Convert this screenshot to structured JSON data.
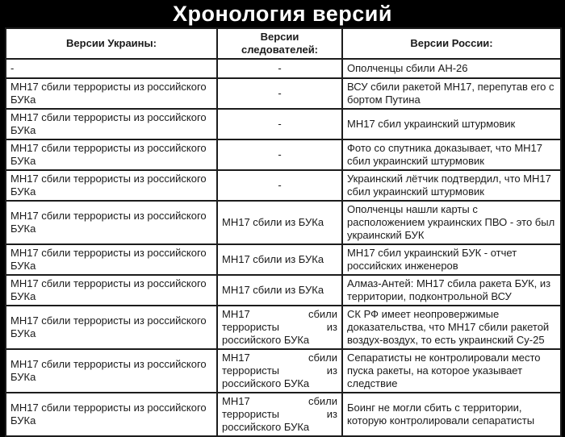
{
  "title": "Хронология версий",
  "colors": {
    "background": "#000000",
    "cell_background": "#ffffff",
    "border": "#1c1c1c",
    "text": "#1a1a1a",
    "title_text": "#ffffff"
  },
  "table": {
    "headers": [
      {
        "label": "Версии Украины:"
      },
      {
        "label": "Версии следователей:"
      },
      {
        "label": "Версии России:"
      }
    ],
    "rows": [
      {
        "ukraine": "-",
        "investigators": "-",
        "russia": "Ополченцы сбили АН-26"
      },
      {
        "ukraine": "МН17 сбили террористы из российского БУКа",
        "investigators": "-",
        "russia": "ВСУ сбили ракетой МН17, перепутав его с бортом Путина"
      },
      {
        "ukraine": "МН17 сбили террористы из российского БУКа",
        "investigators": "-",
        "russia": "МН17 сбил украинский штурмовик"
      },
      {
        "ukraine": "МН17 сбили террористы из российского БУКа",
        "investigators": "-",
        "russia": "Фото со спутника доказывает, что МН17 сбил украинский штурмовик"
      },
      {
        "ukraine": "МН17 сбили террористы из российского БУКа",
        "investigators": "-",
        "russia": "Украинский лётчик подтвердил, что МН17 сбил украинский штурмовик"
      },
      {
        "ukraine": "МН17 сбили террористы из российского БУКа",
        "investigators": "МН17 сбили из БУКа",
        "russia": "Ополченцы нашли карты с расположением украинских ПВО - это был украинский БУК"
      },
      {
        "ukraine": "МН17 сбили террористы из российского БУКа",
        "investigators": "МН17 сбили из БУКа",
        "russia": "МН17 сбил украинский БУК - отчет российских инженеров"
      },
      {
        "ukraine": "МН17 сбили террористы из российского БУКа",
        "investigators": "МН17 сбили из БУКа",
        "russia": "Алмаз-Антей: МН17 сбила ракета БУК, из территории, подконтрольной ВСУ"
      },
      {
        "ukraine": "МН17 сбили террористы из российского БУКа",
        "investigators": "МН17 сбили террористы из российского БУКа",
        "russia": "СК РФ имеет неопровержимые доказательства, что МН17 сбили ракетой воздух-воздух, то есть украинский Су-25"
      },
      {
        "ukraine": "МН17 сбили террористы из российского БУКа",
        "investigators": "МН17 сбили террористы из российского БУКа",
        "russia": "Сепаратисты не контролировали место пуска ракеты, на которое указывает следствие"
      },
      {
        "ukraine": "МН17 сбили террористы из российского БУКа",
        "investigators": "МН17 сбили террористы из российского БУКа",
        "russia": "Боинг не могли сбить с территории, которую контролировали сепаратисты"
      }
    ]
  }
}
